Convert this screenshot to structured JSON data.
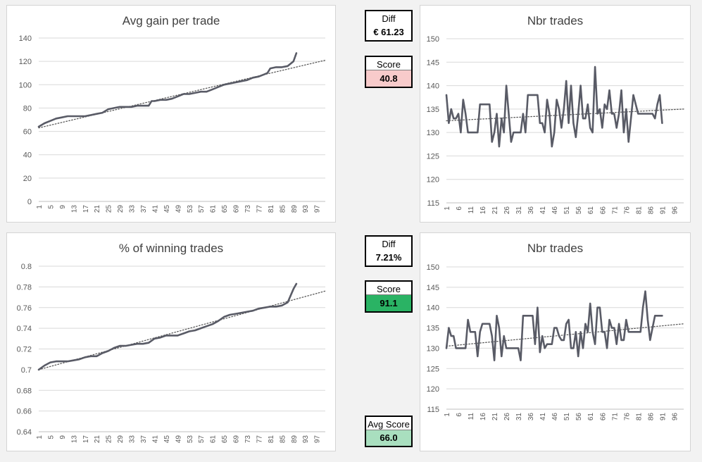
{
  "colors": {
    "line": "#595b66",
    "trend": "#595959",
    "score_low": "#f8cbcb",
    "score_high": "#2ab364",
    "avg_score": "#a9dfbf",
    "grid": "#d9d9d9"
  },
  "metrics": {
    "top": {
      "diff_label": "Diff",
      "diff_value": "€ 61.23",
      "score_label": "Score",
      "score_value": "40.8"
    },
    "bottom": {
      "diff_label": "Diff",
      "diff_value": "7.21%",
      "score_label": "Score",
      "score_value": "91.1"
    },
    "avg": {
      "label": "Avg Score",
      "value": "66.0"
    }
  },
  "chart_data": [
    {
      "type": "line",
      "title": "Avg gain per trade",
      "ylim": [
        0,
        140
      ],
      "yticks": [
        "0",
        "20",
        "40",
        "60",
        "80",
        "100",
        "120",
        "140"
      ],
      "xticks": [
        "1",
        "5",
        "9",
        "13",
        "17",
        "21",
        "25",
        "29",
        "33",
        "37",
        "41",
        "45",
        "49",
        "53",
        "57",
        "61",
        "65",
        "69",
        "73",
        "77",
        "81",
        "85",
        "89",
        "93",
        "97"
      ],
      "x_range": [
        1,
        100
      ],
      "trendline": {
        "type": "linear",
        "dotted": true,
        "start": [
          1,
          63
        ],
        "end": [
          100,
          121
        ]
      },
      "series": [
        {
          "x": [
            1,
            3,
            5,
            7,
            9,
            11,
            13,
            15,
            17,
            19,
            21,
            23,
            25,
            27,
            29,
            31,
            33,
            35,
            37,
            39,
            40,
            41,
            43,
            45,
            47,
            49,
            51,
            53,
            55,
            57,
            59,
            61,
            63,
            65,
            67,
            69,
            71,
            73,
            75,
            77,
            79,
            80,
            81,
            83,
            85,
            87,
            89,
            90
          ],
          "y": [
            64,
            67,
            69,
            71,
            72,
            73,
            73,
            73,
            73,
            74,
            75,
            76,
            79,
            80,
            81,
            81,
            81,
            82,
            82,
            82,
            86,
            86,
            87,
            87,
            88,
            90,
            92,
            92,
            93,
            94,
            94,
            96,
            98,
            100,
            101,
            102,
            103,
            104,
            106,
            107,
            109,
            110,
            114,
            115,
            115,
            116,
            120,
            127
          ]
        }
      ]
    },
    {
      "type": "line",
      "title": "Nbr trades",
      "ylim": [
        115,
        150
      ],
      "yticks": [
        "115",
        "120",
        "125",
        "130",
        "135",
        "140",
        "145",
        "150"
      ],
      "xticks": [
        "1",
        "6",
        "11",
        "16",
        "21",
        "26",
        "31",
        "36",
        "41",
        "46",
        "51",
        "56",
        "61",
        "66",
        "71",
        "76",
        "81",
        "86",
        "91",
        "96"
      ],
      "x_range": [
        1,
        100
      ],
      "trendline": {
        "type": "linear",
        "dotted": true,
        "start": [
          1,
          132.5
        ],
        "end": [
          100,
          135
        ]
      },
      "series": [
        {
          "x": [
            1,
            2,
            3,
            4,
            5,
            6,
            7,
            8,
            9,
            10,
            11,
            12,
            13,
            14,
            15,
            16,
            17,
            18,
            19,
            20,
            21,
            22,
            23,
            24,
            25,
            26,
            27,
            28,
            29,
            30,
            31,
            32,
            33,
            34,
            35,
            36,
            37,
            38,
            39,
            40,
            41,
            42,
            43,
            44,
            45,
            46,
            47,
            48,
            49,
            50,
            51,
            52,
            53,
            54,
            55,
            56,
            57,
            58,
            59,
            60,
            61,
            62,
            63,
            64,
            65,
            66,
            67,
            68,
            69,
            70,
            71,
            72,
            73,
            74,
            75,
            76,
            77,
            78,
            79,
            80,
            81,
            82,
            83,
            84,
            85,
            86,
            87,
            88,
            89,
            90,
            91
          ],
          "y": [
            138,
            132,
            135,
            133,
            133,
            134,
            130,
            137,
            134,
            130,
            130,
            130,
            130,
            130,
            136,
            136,
            136,
            136,
            136,
            128,
            130,
            134,
            127,
            133,
            130,
            140,
            134,
            128,
            130,
            130,
            130,
            130,
            134,
            130,
            138,
            138,
            138,
            138,
            138,
            132,
            132,
            130,
            137,
            134,
            127,
            130,
            137,
            135,
            131,
            135,
            141,
            132,
            140,
            132,
            129,
            134,
            140,
            133,
            133,
            136,
            131,
            130,
            144,
            134,
            135,
            131,
            136,
            135,
            139,
            134,
            134,
            131,
            134,
            139,
            130,
            135,
            128,
            133,
            138,
            136,
            134,
            134,
            134,
            134,
            134,
            134,
            134,
            133,
            136,
            138,
            132
          ]
        }
      ]
    },
    {
      "type": "line",
      "title": "% of winning trades",
      "ylim": [
        0.64,
        0.8
      ],
      "yticks": [
        "0.64",
        "0.66",
        "0.68",
        "0.7",
        "0.72",
        "0.74",
        "0.76",
        "0.78",
        "0.8"
      ],
      "xticks": [
        "1",
        "5",
        "9",
        "13",
        "17",
        "21",
        "25",
        "29",
        "33",
        "37",
        "41",
        "45",
        "49",
        "53",
        "57",
        "61",
        "65",
        "69",
        "73",
        "77",
        "81",
        "85",
        "89",
        "93",
        "97"
      ],
      "x_range": [
        1,
        100
      ],
      "trendline": {
        "type": "linear",
        "dotted": true,
        "start": [
          1,
          0.7
        ],
        "end": [
          100,
          0.776
        ]
      },
      "series": [
        {
          "x": [
            1,
            3,
            5,
            7,
            9,
            11,
            13,
            15,
            17,
            19,
            21,
            23,
            25,
            27,
            29,
            31,
            33,
            35,
            37,
            39,
            41,
            43,
            45,
            47,
            49,
            51,
            53,
            55,
            57,
            59,
            61,
            63,
            65,
            67,
            69,
            71,
            73,
            75,
            77,
            79,
            81,
            83,
            85,
            87,
            89,
            90
          ],
          "y": [
            0.7,
            0.704,
            0.707,
            0.708,
            0.708,
            0.708,
            0.709,
            0.71,
            0.712,
            0.713,
            0.713,
            0.716,
            0.718,
            0.721,
            0.723,
            0.723,
            0.724,
            0.725,
            0.725,
            0.726,
            0.73,
            0.731,
            0.733,
            0.733,
            0.733,
            0.735,
            0.737,
            0.738,
            0.74,
            0.742,
            0.744,
            0.747,
            0.751,
            0.753,
            0.754,
            0.755,
            0.756,
            0.757,
            0.759,
            0.76,
            0.761,
            0.761,
            0.762,
            0.765,
            0.778,
            0.783
          ]
        }
      ]
    },
    {
      "type": "line",
      "title": "Nbr trades",
      "ylim": [
        115,
        150
      ],
      "yticks": [
        "115",
        "120",
        "125",
        "130",
        "135",
        "140",
        "145",
        "150"
      ],
      "xticks": [
        "1",
        "6",
        "11",
        "16",
        "21",
        "26",
        "31",
        "36",
        "41",
        "46",
        "51",
        "56",
        "61",
        "66",
        "71",
        "76",
        "81",
        "86",
        "91",
        "96"
      ],
      "x_range": [
        1,
        100
      ],
      "trendline": {
        "type": "linear",
        "dotted": true,
        "start": [
          1,
          130.5
        ],
        "end": [
          100,
          136
        ]
      },
      "series": [
        {
          "x": [
            1,
            2,
            3,
            4,
            5,
            6,
            7,
            8,
            9,
            10,
            11,
            12,
            13,
            14,
            15,
            16,
            17,
            18,
            19,
            20,
            21,
            22,
            23,
            24,
            25,
            26,
            27,
            28,
            29,
            30,
            31,
            32,
            33,
            34,
            35,
            36,
            37,
            38,
            39,
            40,
            41,
            42,
            43,
            44,
            45,
            46,
            47,
            48,
            49,
            50,
            51,
            52,
            53,
            54,
            55,
            56,
            57,
            58,
            59,
            60,
            61,
            62,
            63,
            64,
            65,
            66,
            67,
            68,
            69,
            70,
            71,
            72,
            73,
            74,
            75,
            76,
            77,
            78,
            79,
            80,
            81,
            82,
            83,
            84,
            85,
            86,
            87,
            88,
            89,
            90,
            91
          ],
          "y": [
            130,
            135,
            133,
            133,
            130,
            130,
            130,
            130,
            130,
            137,
            134,
            134,
            134,
            128,
            134,
            136,
            136,
            136,
            136,
            133,
            127,
            138,
            135,
            128,
            133,
            130,
            130,
            130,
            130,
            130,
            130,
            127,
            138,
            138,
            138,
            138,
            138,
            131,
            140,
            129,
            133,
            130,
            131,
            131,
            131,
            135,
            135,
            133,
            132,
            132,
            136,
            137,
            130,
            130,
            134,
            128,
            134,
            130,
            136,
            134,
            141,
            134,
            131,
            140,
            140,
            134,
            134,
            130,
            137,
            135,
            135,
            131,
            136,
            132,
            132,
            137,
            134,
            134,
            134,
            134,
            134,
            134,
            140,
            144,
            137,
            132,
            135,
            138,
            138,
            138,
            138
          ]
        }
      ]
    }
  ]
}
